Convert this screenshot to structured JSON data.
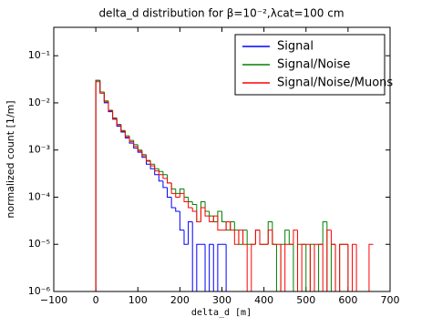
{
  "chart_data": {
    "type": "histogram",
    "title": "delta_d distribution for β=10⁻²,λcat=100 cm",
    "xlabel": "delta_d [m]",
    "ylabel": "normalized count [1/m]",
    "log_y": true,
    "legend": "upper right",
    "bins": [
      0,
      10,
      20,
      30,
      40,
      50,
      60,
      70,
      80,
      90,
      100,
      110,
      120,
      130,
      140,
      150,
      160,
      170,
      180,
      190,
      200,
      210,
      220,
      230,
      240,
      250,
      260,
      270,
      280,
      290,
      300,
      310,
      320,
      330,
      340,
      350,
      360,
      370,
      380,
      390,
      400,
      410,
      420,
      430,
      440,
      450,
      460,
      470,
      480,
      490,
      500,
      510,
      520,
      530,
      540,
      550,
      560,
      570,
      580,
      590,
      600,
      610,
      620,
      630,
      640,
      650,
      660
    ],
    "series": [
      {
        "name": "Signal",
        "color": "#0000ff",
        "values": [
          0.03,
          0.017,
          0.01,
          0.0065,
          0.0045,
          0.0032,
          0.0024,
          0.0018,
          0.0014,
          0.0011,
          0.0009,
          0.0007,
          0.0005,
          0.0004,
          0.0003,
          0.00022,
          0.00016,
          0.0001,
          6e-05,
          5e-05,
          2e-05,
          1e-05,
          3e-05,
          0,
          1e-05,
          1e-05,
          0,
          1e-05,
          0,
          1e-05,
          1e-05,
          0,
          0,
          0,
          0,
          0,
          0,
          0,
          0,
          0,
          0,
          0,
          0,
          0,
          0,
          0,
          0,
          0,
          0,
          0,
          0,
          0,
          0,
          0,
          0,
          0,
          0,
          0,
          0,
          0,
          0,
          0,
          0,
          0,
          0,
          0
        ]
      },
      {
        "name": "Signal/Noise",
        "color": "#008000",
        "values": [
          0.03,
          0.017,
          0.011,
          0.007,
          0.0048,
          0.0035,
          0.0026,
          0.002,
          0.0016,
          0.0013,
          0.001,
          0.0008,
          0.0006,
          0.0005,
          0.0004,
          0.00035,
          0.0003,
          0.0002,
          0.00015,
          0.00012,
          0.00015,
          0.0001,
          8e-05,
          7e-05,
          3e-05,
          8e-05,
          5e-05,
          4e-05,
          3e-05,
          5e-05,
          3e-05,
          2e-05,
          3e-05,
          2e-05,
          1e-05,
          2e-05,
          1e-05,
          1e-05,
          2e-05,
          1e-05,
          1e-05,
          3e-05,
          1e-05,
          0,
          1e-05,
          2e-05,
          1e-05,
          0,
          1e-05,
          1e-05,
          0,
          1e-05,
          0,
          1e-05,
          3e-05,
          0,
          1e-05,
          0,
          1e-05,
          1e-05,
          0,
          0,
          0,
          0,
          0,
          0
        ]
      },
      {
        "name": "Signal/Noise/Muons",
        "color": "#ff0000",
        "values": [
          0.028,
          0.016,
          0.0105,
          0.0068,
          0.0046,
          0.0034,
          0.0025,
          0.0019,
          0.0015,
          0.0012,
          0.00095,
          0.00075,
          0.00058,
          0.00046,
          0.00036,
          0.0003,
          0.00025,
          0.0002,
          0.00012,
          0.0001,
          0.00012,
          8e-05,
          6e-05,
          5e-05,
          3e-05,
          6e-05,
          4e-05,
          3e-05,
          4e-05,
          2e-05,
          2e-05,
          3e-05,
          2e-05,
          1e-05,
          2e-05,
          1e-05,
          0,
          1e-05,
          2e-05,
          1e-05,
          1e-05,
          2e-05,
          1e-05,
          1e-05,
          0,
          1e-05,
          1e-05,
          2e-05,
          0,
          1e-05,
          1e-05,
          0,
          1e-05,
          1e-05,
          0,
          2e-05,
          1e-05,
          0,
          1e-05,
          1e-05,
          0,
          1e-05,
          0,
          0,
          0,
          1e-05
        ]
      }
    ],
    "xlim": [
      -100,
      700
    ],
    "xticks": [
      {
        "value": -100,
        "label": "−100"
      },
      0,
      100,
      200,
      300,
      400,
      500,
      600,
      700
    ],
    "ylim": [
      1e-06,
      0.4
    ],
    "yticks": [
      {
        "value": 1e-06,
        "label": "10⁻⁶"
      },
      {
        "value": 1e-05,
        "label": "10⁻⁵"
      },
      {
        "value": 0.0001,
        "label": "10⁻⁴"
      },
      {
        "value": 0.001,
        "label": "10⁻³"
      },
      {
        "value": 0.01,
        "label": "10⁻²"
      },
      {
        "value": 0.1,
        "label": "10⁻¹"
      }
    ]
  }
}
